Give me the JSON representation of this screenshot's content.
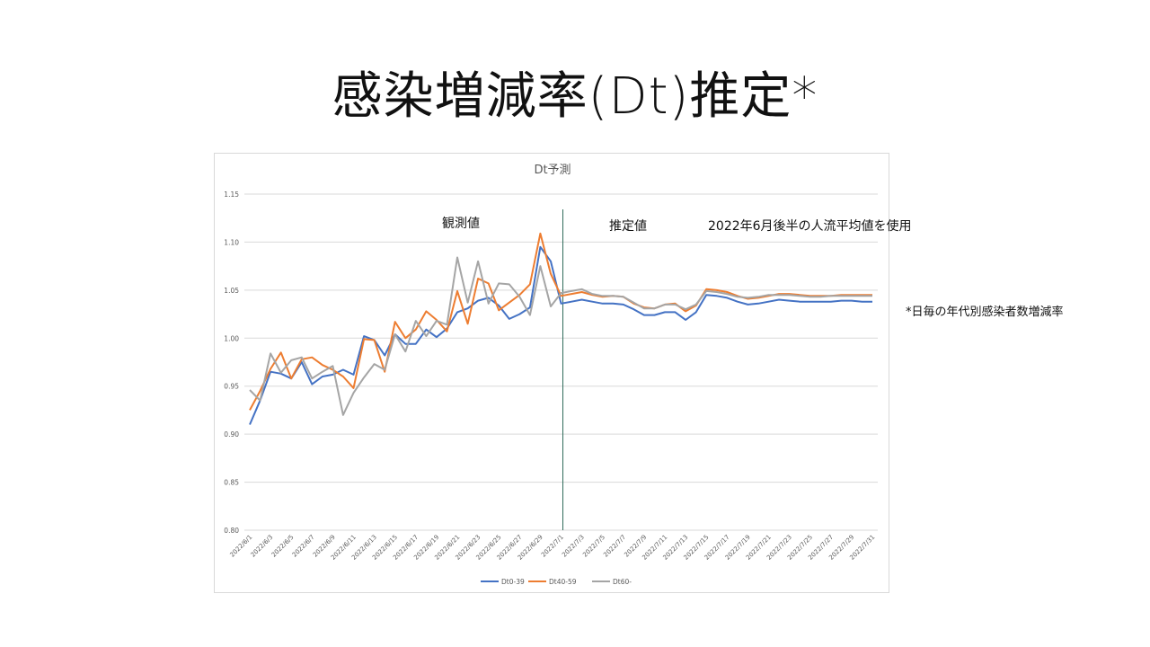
{
  "slide": {
    "title": "感染増減率(Dt)推定*",
    "footnote": "*日毎の年代別感染者数増減率"
  },
  "annotations": {
    "observed": "観測値",
    "estimated": "推定値",
    "assumption": "2022年6月後半の人流平均値を使用"
  },
  "colors": {
    "series": [
      "#4472C4",
      "#ED7D31",
      "#A5A5A5"
    ],
    "grid": "#d9d9d9",
    "divider": "#2f6b5a",
    "text": "#595959"
  },
  "chart_data": {
    "type": "line",
    "title": "Dt予測",
    "ylim": [
      0.8,
      1.15
    ],
    "yticks": [
      "0.80",
      "0.85",
      "0.90",
      "0.95",
      "1.00",
      "1.05",
      "1.10",
      "1.15"
    ],
    "xtick_labels": [
      "2022/6/1",
      "2022/6/3",
      "2022/6/5",
      "2022/6/7",
      "2022/6/9",
      "2022/6/11",
      "2022/6/13",
      "2022/6/15",
      "2022/6/17",
      "2022/6/19",
      "2022/6/21",
      "2022/6/23",
      "2022/6/25",
      "2022/6/27",
      "2022/6/29",
      "2022/7/1",
      "2022/7/3",
      "2022/7/5",
      "2022/7/7",
      "2022/7/9",
      "2022/7/11",
      "2022/7/13",
      "2022/7/15",
      "2022/7/17",
      "2022/7/19",
      "2022/7/21",
      "2022/7/23",
      "2022/7/25",
      "2022/7/27",
      "2022/7/29",
      "2022/7/31"
    ],
    "x": [
      "2022/6/1",
      "2022/6/2",
      "2022/6/3",
      "2022/6/4",
      "2022/6/5",
      "2022/6/6",
      "2022/6/7",
      "2022/6/8",
      "2022/6/9",
      "2022/6/10",
      "2022/6/11",
      "2022/6/12",
      "2022/6/13",
      "2022/6/14",
      "2022/6/15",
      "2022/6/16",
      "2022/6/17",
      "2022/6/18",
      "2022/6/19",
      "2022/6/20",
      "2022/6/21",
      "2022/6/22",
      "2022/6/23",
      "2022/6/24",
      "2022/6/25",
      "2022/6/26",
      "2022/6/27",
      "2022/6/28",
      "2022/6/29",
      "2022/6/30",
      "2022/7/1",
      "2022/7/2",
      "2022/7/3",
      "2022/7/4",
      "2022/7/5",
      "2022/7/6",
      "2022/7/7",
      "2022/7/8",
      "2022/7/9",
      "2022/7/10",
      "2022/7/11",
      "2022/7/12",
      "2022/7/13",
      "2022/7/14",
      "2022/7/15",
      "2022/7/16",
      "2022/7/17",
      "2022/7/18",
      "2022/7/19",
      "2022/7/20",
      "2022/7/21",
      "2022/7/22",
      "2022/7/23",
      "2022/7/24",
      "2022/7/25",
      "2022/7/26",
      "2022/7/27",
      "2022/7/28",
      "2022/7/29",
      "2022/7/30",
      "2022/7/31"
    ],
    "divider_after": "2022/7/1",
    "legend_position": "bottom",
    "series": [
      {
        "name": "Dt0-39",
        "values": [
          0.91,
          0.935,
          0.965,
          0.963,
          0.958,
          0.975,
          0.952,
          0.96,
          0.962,
          0.967,
          0.962,
          1.002,
          0.998,
          0.982,
          1.004,
          0.994,
          0.994,
          1.009,
          1.001,
          1.01,
          1.027,
          1.031,
          1.039,
          1.042,
          1.034,
          1.02,
          1.025,
          1.032,
          1.095,
          1.08,
          1.036,
          1.038,
          1.04,
          1.038,
          1.036,
          1.036,
          1.035,
          1.03,
          1.024,
          1.024,
          1.027,
          1.027,
          1.019,
          1.027,
          1.045,
          1.044,
          1.042,
          1.038,
          1.035,
          1.036,
          1.038,
          1.04,
          1.039,
          1.038,
          1.038,
          1.038,
          1.038,
          1.039,
          1.039,
          1.038,
          1.038
        ]
      },
      {
        "name": "Dt40-59",
        "values": [
          0.925,
          0.945,
          0.968,
          0.985,
          0.958,
          0.978,
          0.98,
          0.972,
          0.967,
          0.96,
          0.948,
          0.999,
          0.998,
          0.965,
          1.017,
          1.0,
          1.009,
          1.028,
          1.019,
          1.007,
          1.049,
          1.015,
          1.062,
          1.057,
          1.029,
          1.037,
          1.045,
          1.056,
          1.109,
          1.067,
          1.044,
          1.046,
          1.048,
          1.045,
          1.043,
          1.044,
          1.043,
          1.036,
          1.032,
          1.031,
          1.035,
          1.036,
          1.028,
          1.034,
          1.051,
          1.05,
          1.048,
          1.044,
          1.041,
          1.042,
          1.044,
          1.046,
          1.046,
          1.045,
          1.044,
          1.044,
          1.044,
          1.045,
          1.045,
          1.045,
          1.045
        ]
      },
      {
        "name": "Dt60-",
        "values": [
          0.946,
          0.935,
          0.984,
          0.964,
          0.977,
          0.98,
          0.958,
          0.965,
          0.971,
          0.92,
          0.943,
          0.959,
          0.973,
          0.967,
          1.004,
          0.986,
          1.018,
          1.002,
          1.018,
          1.014,
          1.084,
          1.037,
          1.08,
          1.036,
          1.057,
          1.056,
          1.043,
          1.024,
          1.075,
          1.033,
          1.047,
          1.049,
          1.051,
          1.046,
          1.044,
          1.044,
          1.043,
          1.037,
          1.031,
          1.031,
          1.035,
          1.035,
          1.03,
          1.035,
          1.049,
          1.048,
          1.046,
          1.043,
          1.042,
          1.043,
          1.045,
          1.045,
          1.045,
          1.044,
          1.043,
          1.043,
          1.044,
          1.044,
          1.044,
          1.044,
          1.044
        ]
      }
    ]
  }
}
